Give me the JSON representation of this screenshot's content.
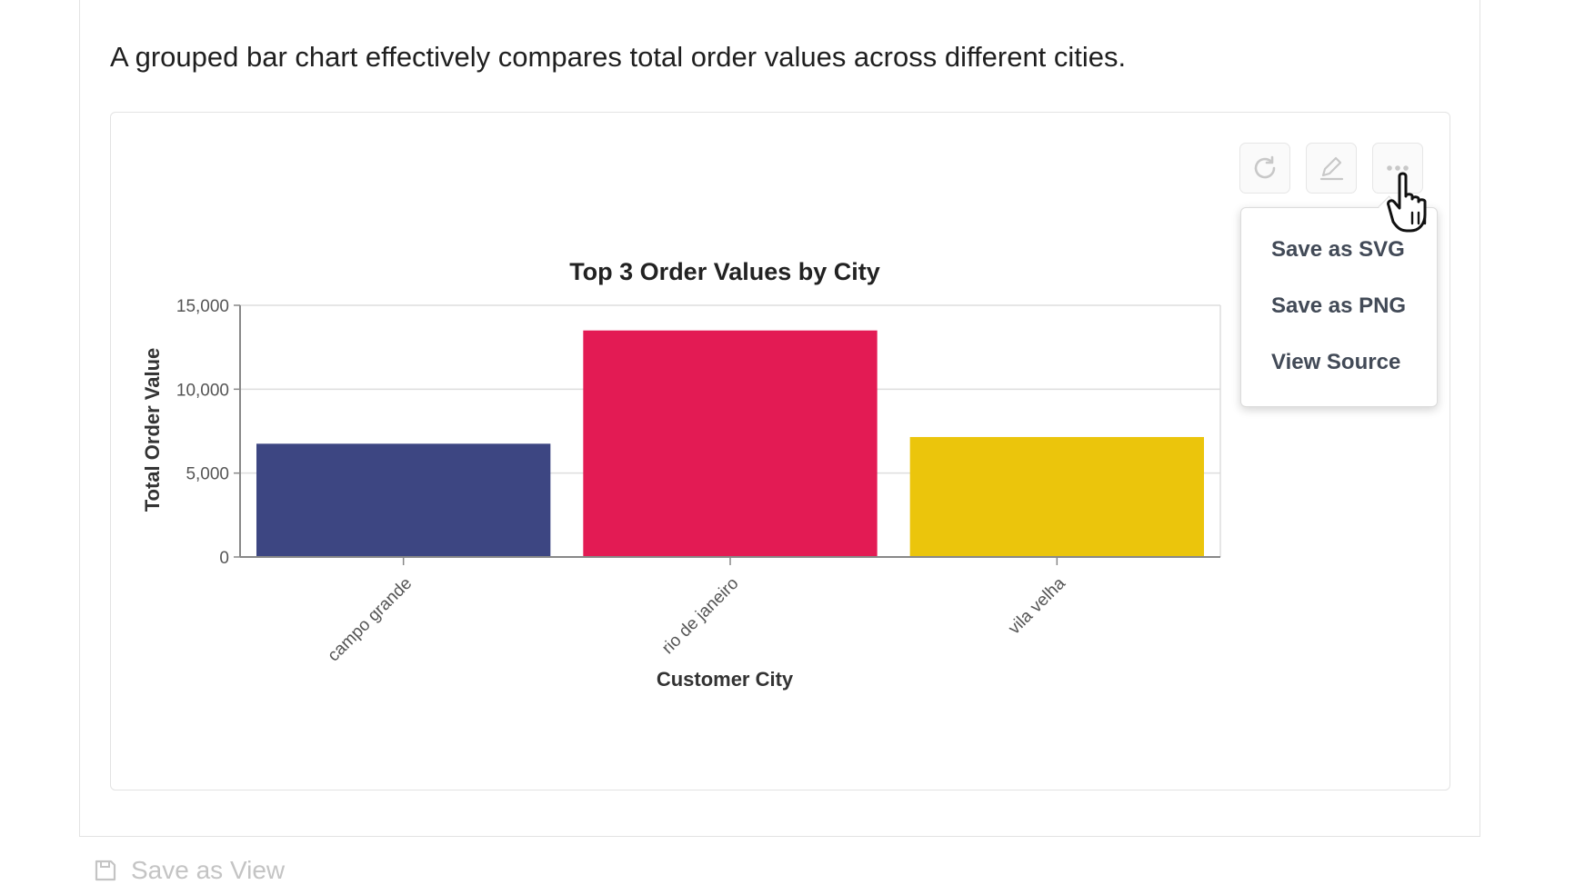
{
  "description": "A grouped bar chart effectively compares total order values across different cities.",
  "toolbar": {
    "refresh_icon": "refresh-icon",
    "edit_icon": "pencil-icon",
    "more_icon": "more-horizontal-icon"
  },
  "menu": {
    "items": [
      {
        "label": "Save as SVG"
      },
      {
        "label": "Save as PNG"
      },
      {
        "label": "View Source"
      }
    ]
  },
  "footer": {
    "save_view_label": "Save as View",
    "save_icon": "floppy-disk-icon"
  },
  "colors": {
    "campo_grande": "#3d4682",
    "rio_de_janeiro": "#e31b54",
    "vila_velha": "#ebc50c"
  },
  "chart_data": {
    "type": "bar",
    "title": "Top 3 Order Values by City",
    "xlabel": "Customer City",
    "ylabel": "Total Order Value",
    "categories": [
      "campo grande",
      "rio de janeiro",
      "vila velha"
    ],
    "values": [
      6750,
      13500,
      7150
    ],
    "ylim": [
      0,
      15000
    ],
    "yticks": [
      0,
      5000,
      10000,
      15000
    ],
    "ytick_labels": [
      "0",
      "5,000",
      "10,000",
      "15,000"
    ],
    "grid": true
  }
}
